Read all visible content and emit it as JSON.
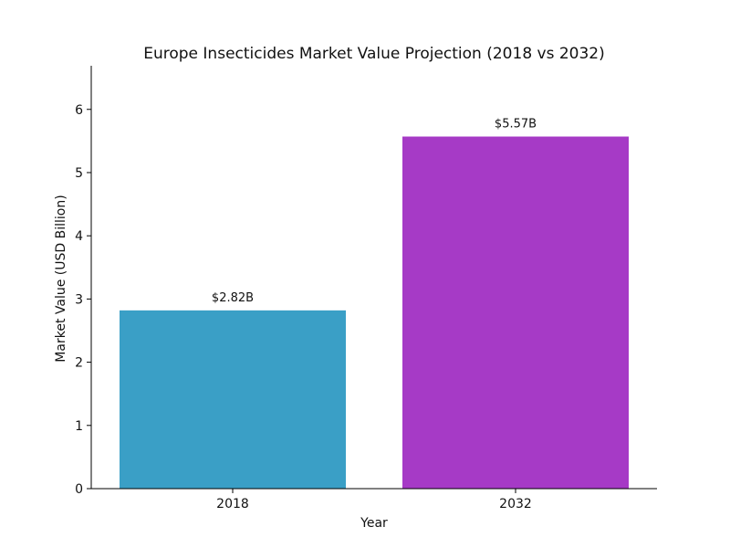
{
  "chart_data": {
    "type": "bar",
    "title": "Europe Insecticides Market Value Projection (2018 vs 2032)",
    "xlabel": "Year",
    "ylabel": "Market Value (USD Billion)",
    "categories": [
      "2018",
      "2032"
    ],
    "values": [
      2.82,
      5.57
    ],
    "data_labels": [
      "$2.82B",
      "$5.57B"
    ],
    "colors": [
      "#3A9FC6",
      "#A63AC6"
    ],
    "ylim": [
      0,
      6.69
    ],
    "yticks": [
      0,
      1,
      2,
      3,
      4,
      5,
      6
    ],
    "grid": false,
    "legend": "none"
  }
}
